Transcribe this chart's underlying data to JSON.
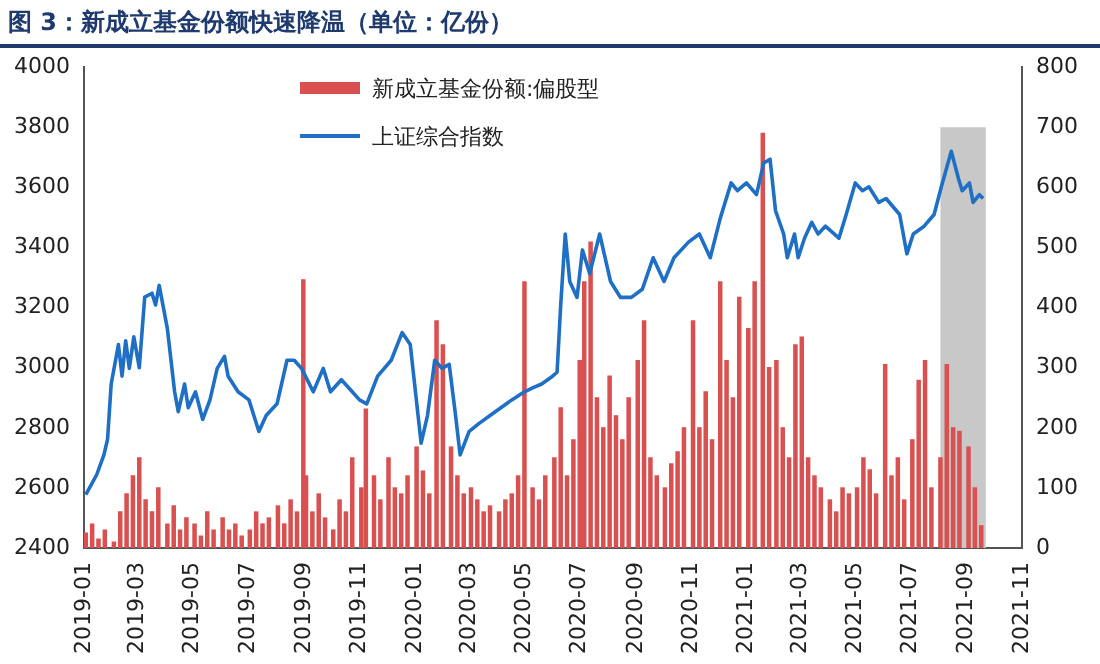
{
  "chart_data": {
    "type": "line",
    "title": "图 3：新成立基金份额快速降温（单位：亿份）",
    "xlim": [
      "2019-01",
      "2021-11"
    ],
    "xticks": [
      "2019-01",
      "2019-03",
      "2019-05",
      "2019-07",
      "2019-09",
      "2019-11",
      "2020-01",
      "2020-03",
      "2020-05",
      "2020-07",
      "2020-09",
      "2020-11",
      "2021-01",
      "2021-03",
      "2021-05",
      "2021-07",
      "2021-09",
      "2021-11"
    ],
    "ylim": [
      2400,
      4000
    ],
    "yticks": [
      2400,
      2600,
      2800,
      3000,
      3200,
      3400,
      3600,
      3800,
      4000
    ],
    "y2lim": [
      0,
      800
    ],
    "y2ticks": [
      0,
      100,
      200,
      300,
      400,
      500,
      600,
      700,
      800
    ],
    "legend": "top left",
    "bands": [
      {
        "axis": "x",
        "from": "2021-08-03",
        "to": "2021-09-22",
        "color": "#c8c8c8"
      }
    ],
    "series": [
      {
        "name": "新成立基金份额:偏股型",
        "type": "bar",
        "axis": "y2",
        "color": "#d85050",
        "x": [
          "2019-01-03",
          "2019-01-10",
          "2019-01-17",
          "2019-01-24",
          "2019-02-03",
          "2019-02-10",
          "2019-02-17",
          "2019-02-24",
          "2019-03-03",
          "2019-03-10",
          "2019-03-17",
          "2019-03-24",
          "2019-04-03",
          "2019-04-10",
          "2019-04-17",
          "2019-04-24",
          "2019-05-03",
          "2019-05-10",
          "2019-05-17",
          "2019-05-24",
          "2019-06-03",
          "2019-06-10",
          "2019-06-17",
          "2019-06-24",
          "2019-07-03",
          "2019-07-10",
          "2019-07-17",
          "2019-07-24",
          "2019-08-03",
          "2019-08-10",
          "2019-08-17",
          "2019-08-24",
          "2019-08-31",
          "2019-09-03",
          "2019-09-10",
          "2019-09-17",
          "2019-09-24",
          "2019-10-03",
          "2019-10-10",
          "2019-10-17",
          "2019-10-24",
          "2019-11-03",
          "2019-11-08",
          "2019-11-17",
          "2019-11-24",
          "2019-12-03",
          "2019-12-10",
          "2019-12-17",
          "2019-12-24",
          "2020-01-03",
          "2020-01-10",
          "2020-01-17",
          "2020-01-25",
          "2020-02-01",
          "2020-02-10",
          "2020-02-17",
          "2020-02-24",
          "2020-03-03",
          "2020-03-10",
          "2020-03-17",
          "2020-03-24",
          "2020-04-03",
          "2020-04-10",
          "2020-04-17",
          "2020-04-24",
          "2020-05-01",
          "2020-05-10",
          "2020-05-17",
          "2020-05-24",
          "2020-06-03",
          "2020-06-10",
          "2020-06-17",
          "2020-06-24",
          "2020-07-01",
          "2020-07-06",
          "2020-07-13",
          "2020-07-20",
          "2020-07-27",
          "2020-08-03",
          "2020-08-10",
          "2020-08-17",
          "2020-08-24",
          "2020-09-03",
          "2020-09-10",
          "2020-09-17",
          "2020-09-24",
          "2020-10-03",
          "2020-10-10",
          "2020-10-17",
          "2020-10-24",
          "2020-11-03",
          "2020-11-10",
          "2020-11-17",
          "2020-11-24",
          "2020-12-03",
          "2020-12-10",
          "2020-12-17",
          "2020-12-24",
          "2021-01-03",
          "2021-01-10",
          "2021-01-19",
          "2021-01-26",
          "2021-02-03",
          "2021-02-10",
          "2021-02-17",
          "2021-02-24",
          "2021-03-03",
          "2021-03-10",
          "2021-03-17",
          "2021-03-24",
          "2021-04-03",
          "2021-04-10",
          "2021-04-17",
          "2021-04-24",
          "2021-05-03",
          "2021-05-10",
          "2021-05-17",
          "2021-05-24",
          "2021-06-03",
          "2021-06-10",
          "2021-06-17",
          "2021-06-24",
          "2021-07-03",
          "2021-07-10",
          "2021-07-17",
          "2021-07-24",
          "2021-08-03",
          "2021-08-10",
          "2021-08-17",
          "2021-08-24",
          "2021-09-03",
          "2021-09-10",
          "2021-09-17"
        ],
        "values": [
          25,
          40,
          15,
          30,
          10,
          60,
          90,
          120,
          150,
          80,
          60,
          100,
          40,
          70,
          30,
          50,
          40,
          20,
          60,
          30,
          50,
          30,
          40,
          20,
          30,
          60,
          40,
          50,
          70,
          40,
          80,
          60,
          446,
          120,
          60,
          90,
          50,
          30,
          80,
          60,
          150,
          100,
          231,
          120,
          80,
          150,
          100,
          90,
          120,
          168,
          128,
          90,
          378,
          338,
          168,
          120,
          90,
          100,
          80,
          60,
          70,
          60,
          80,
          90,
          120,
          443,
          100,
          80,
          120,
          150,
          233,
          120,
          180,
          312,
          443,
          509,
          250,
          200,
          286,
          220,
          180,
          250,
          312,
          378,
          150,
          120,
          100,
          140,
          160,
          200,
          378,
          200,
          260,
          180,
          443,
          312,
          250,
          417,
          365,
          443,
          690,
          300,
          312,
          200,
          150,
          338,
          351,
          150,
          120,
          100,
          80,
          60,
          100,
          90,
          100,
          150,
          130,
          90,
          305,
          120,
          150,
          80,
          180,
          279,
          312,
          100,
          150,
          305,
          200,
          194,
          168,
          100,
          37
        ]
      },
      {
        "name": "上证综合指数",
        "color": "#1f6fc5",
        "x": [
          "2019-01-03",
          "2019-01-15",
          "2019-01-23",
          "2019-01-27",
          "2019-01-31",
          "2019-02-08",
          "2019-02-12",
          "2019-02-16",
          "2019-02-20",
          "2019-02-25",
          "2019-03-03",
          "2019-03-09",
          "2019-03-17",
          "2019-03-21",
          "2019-03-25",
          "2019-04-03",
          "2019-04-11",
          "2019-04-15",
          "2019-04-22",
          "2019-04-26",
          "2019-05-04",
          "2019-05-12",
          "2019-05-20",
          "2019-05-28",
          "2019-06-05",
          "2019-06-09",
          "2019-06-20",
          "2019-07-02",
          "2019-07-13",
          "2019-07-21",
          "2019-08-02",
          "2019-08-13",
          "2019-08-21",
          "2019-08-29",
          "2019-09-11",
          "2019-09-22",
          "2019-09-30",
          "2019-10-12",
          "2019-10-24",
          "2019-11-01",
          "2019-11-09",
          "2019-11-21",
          "2019-12-06",
          "2019-12-18",
          "2019-12-27",
          "2020-01-08",
          "2020-01-15",
          "2020-01-23",
          "2020-01-31",
          "2020-02-08",
          "2020-02-15",
          "2020-02-20",
          "2020-03-01",
          "2020-03-12",
          "2020-03-24",
          "2020-04-05",
          "2020-04-17",
          "2020-05-01",
          "2020-05-10",
          "2020-05-20",
          "2020-06-01",
          "2020-06-06",
          "2020-06-10",
          "2020-06-15",
          "2020-06-20",
          "2020-06-28",
          "2020-07-04",
          "2020-07-12",
          "2020-07-23",
          "2020-08-04",
          "2020-08-15",
          "2020-08-27",
          "2020-09-08",
          "2020-09-20",
          "2020-10-02",
          "2020-10-13",
          "2020-10-29",
          "2020-11-10",
          "2020-11-22",
          "2020-12-03",
          "2020-12-15",
          "2020-12-22",
          "2021-01-01",
          "2021-01-12",
          "2021-01-20",
          "2021-01-27",
          "2021-02-02",
          "2021-02-11",
          "2021-02-15",
          "2021-02-23",
          "2021-02-27",
          "2021-03-06",
          "2021-03-14",
          "2021-03-21",
          "2021-03-29",
          "2021-04-13",
          "2021-04-21",
          "2021-05-01",
          "2021-05-09",
          "2021-05-16",
          "2021-05-27",
          "2021-06-04",
          "2021-06-19",
          "2021-06-27",
          "2021-07-04",
          "2021-07-16",
          "2021-07-27",
          "2021-08-04",
          "2021-08-15",
          "2021-08-23",
          "2021-08-27",
          "2021-09-04",
          "2021-09-08",
          "2021-09-15",
          "2021-09-19"
        ],
        "values": [
          2578,
          2644,
          2710,
          2762,
          2946,
          3077,
          2972,
          3090,
          2998,
          3103,
          3000,
          3235,
          3248,
          3209,
          3274,
          3130,
          2920,
          2854,
          2946,
          2867,
          2920,
          2828,
          2893,
          2998,
          3038,
          2972,
          2920,
          2893,
          2788,
          2841,
          2880,
          3025,
          3025,
          2998,
          2920,
          2998,
          2920,
          2960,
          2920,
          2893,
          2880,
          2972,
          3025,
          3117,
          3077,
          2749,
          2841,
          3025,
          2998,
          3011,
          2841,
          2710,
          2788,
          2815,
          2841,
          2867,
          2893,
          2920,
          2933,
          2946,
          2972,
          2985,
          3208,
          3445,
          3287,
          3234,
          3392,
          3313,
          3445,
          3287,
          3234,
          3234,
          3261,
          3366,
          3287,
          3366,
          3418,
          3445,
          3366,
          3497,
          3615,
          3589,
          3615,
          3576,
          3681,
          3694,
          3523,
          3445,
          3366,
          3445,
          3366,
          3431,
          3484,
          3445,
          3471,
          3431,
          3510,
          3615,
          3589,
          3602,
          3550,
          3563,
          3510,
          3379,
          3445,
          3471,
          3510,
          3602,
          3720,
          3628,
          3589,
          3615,
          3550,
          3576,
          3563
        ]
      }
    ]
  }
}
